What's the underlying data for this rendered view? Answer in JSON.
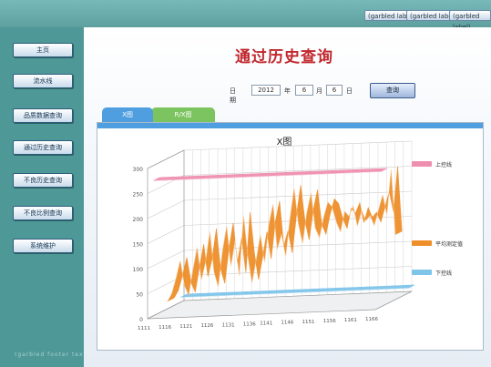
{
  "top_buttons": [
    "(garbled label)",
    "(garbled label)",
    "(garbled label)"
  ],
  "sidebar": {
    "items": [
      {
        "label": "主页"
      },
      {
        "label": "流水线"
      },
      {
        "label": "品质数据查询"
      },
      {
        "label": "通过历史查询"
      },
      {
        "label": "不良历史查询"
      },
      {
        "label": "不良比例查询"
      },
      {
        "label": "系统维护"
      }
    ],
    "footer": "(garbled footer text)"
  },
  "page": {
    "title": "通过历史查询"
  },
  "query": {
    "label": "日期",
    "year": "2012",
    "year_unit": "年",
    "month": "6",
    "month_unit": "月",
    "day": "6",
    "day_unit": "日",
    "button": "查询"
  },
  "tabs": [
    {
      "label": "X图"
    },
    {
      "label": "R/X图"
    }
  ],
  "colors": {
    "upper": "#ef8fb0",
    "avg": "#ee8f2a",
    "lower": "#7fc5ea",
    "tab_x": "#4f9ee0",
    "tab_y": "#7cc460"
  },
  "chart_data": {
    "type": "line",
    "title": "X图",
    "x_ticks": [
      "1111",
      "1116",
      "1121",
      "1126",
      "1131",
      "1136",
      "1141",
      "1146",
      "1151",
      "1156",
      "1161",
      "1166"
    ],
    "y_ticks": [
      0,
      50,
      100,
      150,
      200,
      250,
      300
    ],
    "ylim": [
      0,
      300
    ],
    "grid": true,
    "legend_position": "right",
    "series": [
      {
        "name": "上控线",
        "color_key": "upper",
        "values": [
          270,
          270,
          270,
          270,
          270,
          270,
          270,
          270,
          270,
          270,
          270,
          270,
          270,
          270,
          270,
          270,
          270,
          270,
          270,
          270,
          270,
          270,
          270,
          270,
          270,
          270,
          270,
          270,
          270,
          270,
          270,
          270,
          270,
          270,
          270,
          270,
          270,
          270,
          270,
          270,
          270,
          270,
          270,
          270,
          270,
          270,
          270,
          270,
          270,
          270,
          270,
          270,
          270,
          270,
          270
        ]
      },
      {
        "name": "平均测定值",
        "color_key": "avg",
        "values": [
          15,
          30,
          60,
          95,
          45,
          25,
          75,
          120,
          55,
          90,
          150,
          70,
          40,
          110,
          160,
          80,
          130,
          60,
          180,
          100,
          45,
          90,
          140,
          85,
          160,
          200,
          110,
          140,
          95,
          170,
          230,
          160,
          120,
          180,
          220,
          150,
          130,
          170,
          200,
          190,
          160,
          140,
          180,
          170,
          190,
          150,
          180,
          160,
          170,
          150,
          180,
          210,
          170,
          260,
          130
        ]
      },
      {
        "name": "下控线",
        "color_key": "lower",
        "values": [
          10,
          10,
          10,
          10,
          10,
          10,
          10,
          10,
          10,
          10,
          10,
          10,
          10,
          10,
          10,
          10,
          10,
          10,
          10,
          10,
          10,
          10,
          10,
          10,
          10,
          10,
          10,
          10,
          10,
          10,
          10,
          10,
          10,
          10,
          10,
          10,
          10,
          10,
          10,
          10,
          10,
          10,
          10,
          10,
          10,
          10,
          10,
          10,
          10,
          10,
          10,
          10,
          10,
          10,
          10
        ]
      }
    ]
  }
}
